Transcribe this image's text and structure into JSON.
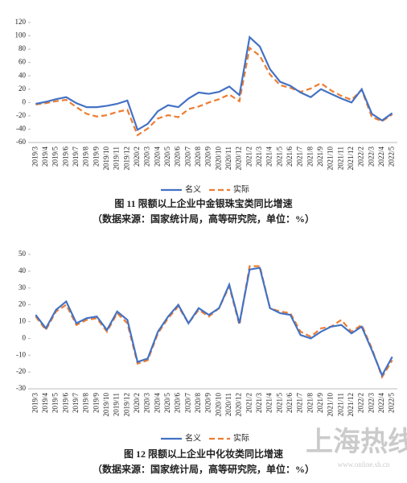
{
  "chart_data": [
    {
      "type": "line",
      "title": "图 11 限额以上企业中金银珠宝类同比增速",
      "subtitle": "（数据来源：国家统计局，高等研究院，单位：%）",
      "categories": [
        "2019/3",
        "2019/4",
        "2019/5",
        "2019/6",
        "2019/7",
        "2019/8",
        "2019/9",
        "2019/10",
        "2019/11",
        "2019/12",
        "2020/2",
        "2020/3",
        "2020/4",
        "2020/5",
        "2020/6",
        "2020/7",
        "2020/8",
        "2020/9",
        "2020/10",
        "2020/11",
        "2020/12",
        "2021/2",
        "2021/3",
        "2021/4",
        "2021/5",
        "2021/6",
        "2021/7",
        "2021/8",
        "2021/9",
        "2021/10",
        "2021/11",
        "2021/12",
        "2022/2",
        "2022/3",
        "2022/4",
        "2022/5"
      ],
      "series": [
        {
          "name": "名义",
          "color": "#4472c4",
          "values": [
            -2,
            1,
            5,
            8,
            -1,
            -7,
            -7,
            -5,
            -2,
            3,
            -41,
            -32,
            -13,
            -4,
            -7,
            6,
            15,
            13,
            16,
            24,
            11,
            98,
            84,
            50,
            31,
            25,
            15,
            8,
            20,
            13,
            6,
            0,
            20,
            -17,
            -27,
            -16
          ]
        },
        {
          "name": "实际",
          "color": "#ed7d31",
          "values": [
            -3,
            -1,
            2,
            4,
            -7,
            -17,
            -21,
            -19,
            -14,
            -11,
            -49,
            -39,
            -24,
            -19,
            -22,
            -10,
            -6,
            0,
            5,
            12,
            2,
            82,
            70,
            42,
            26,
            22,
            16,
            21,
            29,
            18,
            10,
            4,
            19,
            -22,
            -28,
            -18
          ]
        }
      ],
      "ylim": [
        -60,
        120
      ],
      "yticks": [
        -60,
        -40,
        -20,
        0,
        20,
        40,
        60,
        80,
        100,
        120
      ],
      "grid": false,
      "legend": "bottom"
    },
    {
      "type": "line",
      "title": "图 12 限额以上企业中化妆类同比增速",
      "subtitle": "（数据来源：国家统计局，高等研究院，单位：%）",
      "categories": [
        "2019/3",
        "2019/4",
        "2019/5",
        "2019/6",
        "2019/7",
        "2019/8",
        "2019/9",
        "2019/10",
        "2019/11",
        "2019/12",
        "2020/2",
        "2020/3",
        "2020/4",
        "2020/5",
        "2020/6",
        "2020/7",
        "2020/8",
        "2020/9",
        "2020/10",
        "2020/11",
        "2020/12",
        "2021/2",
        "2021/3",
        "2021/4",
        "2021/5",
        "2021/6",
        "2021/7",
        "2021/8",
        "2021/9",
        "2021/10",
        "2021/11",
        "2021/12",
        "2022/2",
        "2022/3",
        "2022/4",
        "2022/5"
      ],
      "series": [
        {
          "name": "名义",
          "color": "#4472c4",
          "values": [
            14,
            6,
            17,
            22,
            9,
            12,
            13,
            5,
            16,
            11,
            -14,
            -12,
            4,
            13,
            20,
            9,
            18,
            14,
            18,
            32,
            9,
            41,
            42,
            18,
            15,
            14,
            2,
            0,
            4,
            7,
            8,
            3,
            7,
            -7,
            -22,
            -11
          ]
        },
        {
          "name": "实际",
          "color": "#ed7d31",
          "values": [
            13,
            5,
            16,
            20,
            8,
            11,
            12,
            4,
            15,
            9,
            -15,
            -13,
            3,
            12,
            19,
            9,
            17,
            13,
            18,
            31,
            8,
            43,
            43,
            18,
            16,
            15,
            4,
            1,
            6,
            7,
            11,
            4,
            8,
            -6,
            -23,
            -13
          ]
        }
      ],
      "ylim": [
        -30,
        50
      ],
      "yticks": [
        -30,
        -20,
        -10,
        0,
        10,
        20,
        30,
        40,
        50
      ],
      "grid": false,
      "legend": "bottom"
    }
  ],
  "watermark": {
    "text": "上海热线",
    "url": "www.online.sh.cn"
  }
}
